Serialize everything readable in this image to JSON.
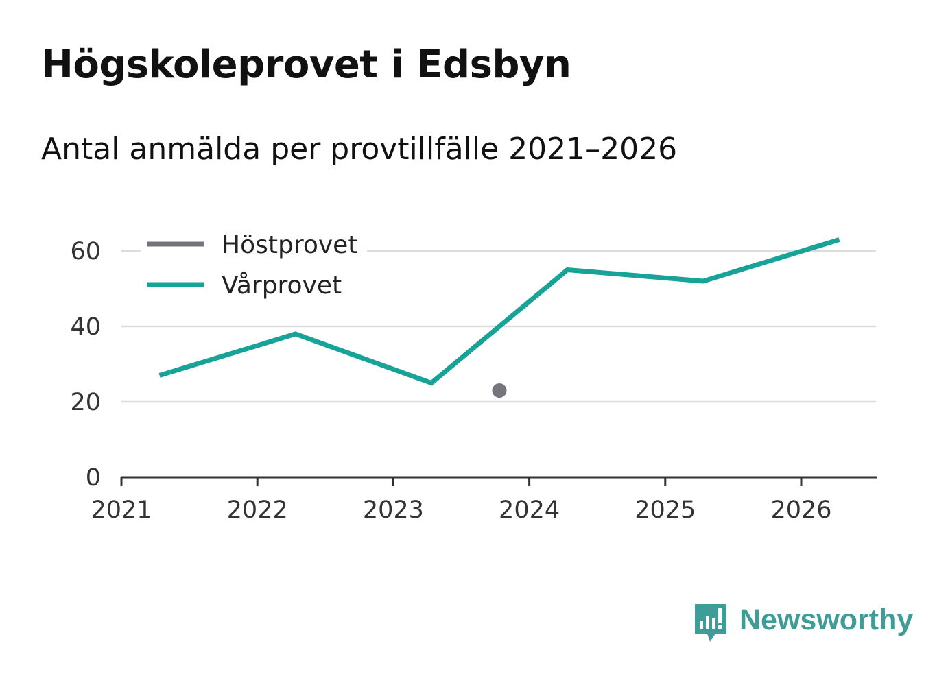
{
  "header": {
    "title": "Högskoleprovet i Edsbyn",
    "subtitle": "Antal anmälda per provtillfälle 2021–2026"
  },
  "chart_data": {
    "type": "line",
    "title": "Högskoleprovet i Edsbyn",
    "subtitle": "Antal anmälda per provtillfälle 2021–2026",
    "xlabel": "",
    "ylabel": "",
    "xlim": [
      2021,
      2026.55
    ],
    "ylim": [
      0,
      60
    ],
    "x_ticks": [
      2021,
      2022,
      2023,
      2024,
      2025,
      2026
    ],
    "y_ticks": [
      0,
      20,
      40,
      60
    ],
    "grid": true,
    "legend_position": "top-left",
    "series": [
      {
        "name": "Höstprovet",
        "color": "#76757e",
        "points": [
          {
            "x": 2023.78,
            "y": 23
          }
        ]
      },
      {
        "name": "Vårprovet",
        "color": "#17a398",
        "points": [
          {
            "x": 2021.28,
            "y": 27
          },
          {
            "x": 2022.28,
            "y": 38
          },
          {
            "x": 2023.28,
            "y": 25
          },
          {
            "x": 2024.28,
            "y": 55
          },
          {
            "x": 2025.28,
            "y": 52
          },
          {
            "x": 2026.28,
            "y": 63
          }
        ]
      }
    ]
  },
  "branding": {
    "logo_text": "Newsworthy",
    "logo_color": "#3f9c96",
    "logo_icon": "newsworthy-chart-bubble-icon"
  }
}
